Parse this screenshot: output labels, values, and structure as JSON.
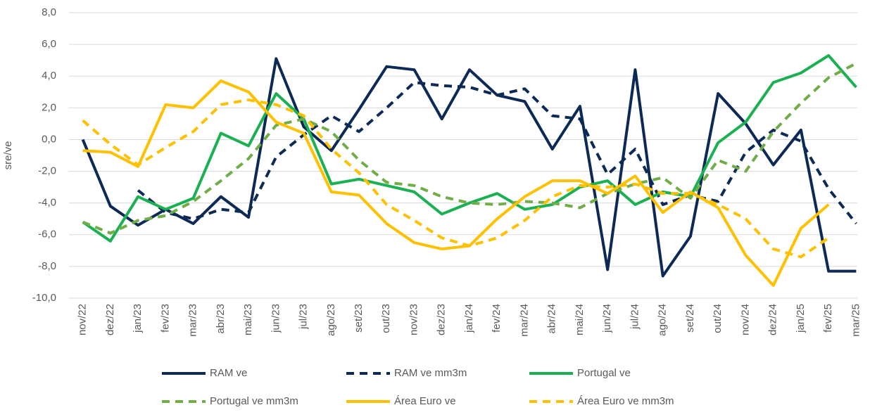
{
  "chart_data": {
    "type": "line",
    "y_label": "sre/ve",
    "categories": [
      "nov/22",
      "dez/22",
      "jan/23",
      "fev/23",
      "mar/23",
      "abr/23",
      "mai/23",
      "jun/23",
      "jul/23",
      "ago/23",
      "set/23",
      "out/23",
      "nov/23",
      "dez/23",
      "jan/24",
      "fev/24",
      "mar/24",
      "abr/24",
      "mai/24",
      "jun/24",
      "jul/24",
      "ago/24",
      "set/24",
      "out/24",
      "nov/24",
      "dez/24",
      "jan/25",
      "fev/25",
      "mar/25"
    ],
    "ylim": [
      -10,
      8
    ],
    "yticks": [
      {
        "value": -10,
        "label": "-10,0"
      },
      {
        "value": -8,
        "label": "-8,0"
      },
      {
        "value": -6,
        "label": "-6,0"
      },
      {
        "value": -4,
        "label": "-4,0"
      },
      {
        "value": -2,
        "label": "-2,0"
      },
      {
        "value": 0,
        "label": "0,0"
      },
      {
        "value": 2,
        "label": "2,0"
      },
      {
        "value": 4,
        "label": "4,0"
      },
      {
        "value": 6,
        "label": "6,0"
      },
      {
        "value": 8,
        "label": "8,0"
      }
    ],
    "grid": true,
    "series": [
      {
        "name": "RAM ve",
        "color": "#0c2a55",
        "dashed": false,
        "values": [
          0.0,
          -4.2,
          -5.4,
          -4.4,
          -5.3,
          -3.6,
          -4.9,
          5.1,
          0.8,
          -0.7,
          1.9,
          4.6,
          4.4,
          1.3,
          4.4,
          2.8,
          2.4,
          -0.6,
          2.1,
          -8.2,
          4.4,
          -8.6,
          -6.1,
          2.9,
          1.0,
          -1.6,
          0.6,
          -8.3,
          -8.3
        ]
      },
      {
        "name": "RAM ve mm3m",
        "color": "#0c2a55",
        "dashed": true,
        "values": [
          null,
          null,
          -3.2,
          -4.6,
          -5.0,
          -4.4,
          -4.6,
          -1.1,
          0.3,
          1.5,
          0.5,
          2.0,
          3.6,
          3.4,
          3.3,
          2.8,
          3.2,
          1.5,
          1.3,
          -2.2,
          -0.6,
          -4.1,
          -3.5,
          -3.9,
          -0.8,
          0.6,
          -0.1,
          -3.1,
          -5.3
        ]
      },
      {
        "name": "Portugal ve",
        "color": "#1bb152",
        "dashed": false,
        "values": [
          -5.2,
          -6.4,
          -3.6,
          -4.4,
          -3.7,
          0.4,
          -0.4,
          2.9,
          1.3,
          -2.8,
          -2.5,
          -2.9,
          -3.3,
          -4.7,
          -4.0,
          -3.4,
          -4.4,
          -4.1,
          -3.0,
          -2.6,
          -4.1,
          -3.3,
          -3.6,
          -0.2,
          1.1,
          3.6,
          4.2,
          5.3,
          3.3
        ]
      },
      {
        "name": "Portugal ve mm3m",
        "color": "#70ad47",
        "dashed": true,
        "values": [
          -5.2,
          -5.9,
          -5.1,
          -4.8,
          -3.9,
          -2.6,
          -1.2,
          0.9,
          1.3,
          0.5,
          -1.3,
          -2.7,
          -2.9,
          -3.6,
          -4.0,
          -4.1,
          -3.9,
          -4.0,
          -4.3,
          -3.4,
          -2.8,
          -2.4,
          -3.7,
          -1.3,
          -2.0,
          0.5,
          2.3,
          3.9,
          4.8
        ]
      },
      {
        "name": "Área Euro ve",
        "color": "#ffc000",
        "dashed": false,
        "values": [
          -0.7,
          -0.8,
          -1.7,
          2.2,
          2.0,
          3.7,
          3.0,
          1.1,
          0.4,
          -3.3,
          -3.5,
          -5.3,
          -6.5,
          -6.9,
          -6.7,
          -5.0,
          -3.6,
          -2.6,
          -2.6,
          -3.4,
          -2.3,
          -4.6,
          -3.3,
          -4.3,
          -7.3,
          -9.2,
          -5.6,
          -4.1,
          null
        ]
      },
      {
        "name": "Área Euro ve mm3m",
        "color": "#ffc000",
        "dashed": true,
        "values": [
          1.2,
          -0.3,
          -1.6,
          -0.5,
          0.5,
          2.2,
          2.5,
          2.2,
          1.5,
          -0.6,
          -2.1,
          -4.1,
          -5.1,
          -6.2,
          -6.7,
          -6.2,
          -5.1,
          -3.6,
          -2.9,
          -3.0,
          -2.8,
          -3.4,
          -3.4,
          -4.1,
          -5.0,
          -6.9,
          -7.4,
          -6.2,
          null
        ]
      }
    ]
  }
}
